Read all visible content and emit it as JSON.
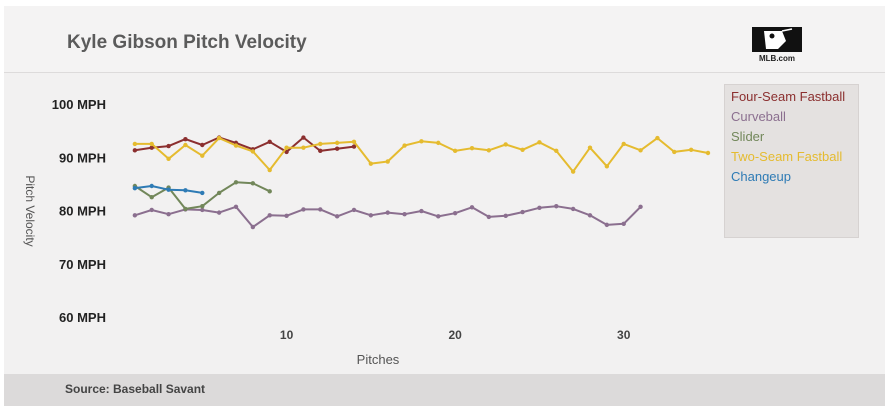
{
  "header": {
    "title": "Kyle Gibson Pitch Velocity",
    "logo_label": "MLB.com"
  },
  "footer": {
    "source": "Source: Baseball Savant"
  },
  "chart_data": {
    "type": "line",
    "title": "Kyle Gibson Pitch Velocity",
    "xlabel": "Pitches",
    "ylabel": "Pitch Velocity",
    "xlim": [
      0,
      35
    ],
    "ylim": [
      60,
      100
    ],
    "x_ticks": [
      10,
      20,
      30
    ],
    "y_ticks": [
      60,
      70,
      80,
      90,
      100
    ],
    "y_tick_labels": [
      "60 MPH",
      "70 MPH",
      "80 MPH",
      "90 MPH",
      "100 MPH"
    ],
    "grid": false,
    "legend_position": "right",
    "series": [
      {
        "name": "Four-Seam Fastball",
        "color": "#8b2f2f",
        "x": [
          1,
          2,
          3,
          4,
          5,
          6,
          7,
          8,
          9,
          10,
          11,
          12,
          13,
          14
        ],
        "y": [
          91.3,
          91.8,
          92.1,
          93.4,
          92.3,
          93.7,
          92.7,
          91.5,
          92.9,
          91.0,
          93.7,
          91.2,
          91.6,
          92.0
        ]
      },
      {
        "name": "Curveball",
        "color": "#8b6f8f",
        "x": [
          1,
          2,
          3,
          4,
          5,
          6,
          7,
          8,
          9,
          10,
          11,
          12,
          13,
          14,
          15,
          16,
          17,
          18,
          19,
          20,
          21,
          22,
          23,
          24,
          25,
          26,
          27,
          28,
          29,
          30,
          31
        ],
        "y": [
          79.1,
          80.1,
          79.3,
          80.2,
          80.1,
          79.6,
          80.7,
          76.9,
          79.1,
          79.0,
          80.2,
          80.2,
          78.9,
          80.1,
          79.1,
          79.6,
          79.3,
          79.9,
          78.9,
          79.5,
          80.6,
          78.8,
          79.0,
          79.7,
          80.5,
          80.8,
          80.3,
          79.1,
          77.3,
          77.5,
          80.7
        ]
      },
      {
        "name": "Slider",
        "color": "#72875a",
        "x": [
          1,
          2,
          3,
          4,
          5,
          6,
          7,
          8,
          9
        ],
        "y": [
          84.6,
          82.5,
          84.3,
          80.3,
          80.8,
          83.3,
          85.3,
          85.1,
          83.6
        ]
      },
      {
        "name": "Two-Seam Fastball",
        "color": "#e5bb2f",
        "x": [
          1,
          2,
          3,
          4,
          5,
          6,
          7,
          8,
          9,
          10,
          11,
          12,
          13,
          14,
          15,
          16,
          17,
          18,
          19,
          20,
          21,
          22,
          23,
          24,
          25,
          26,
          27,
          28,
          29,
          30,
          31,
          32,
          33,
          34,
          35
        ],
        "y": [
          92.5,
          92.5,
          89.7,
          92.3,
          90.3,
          93.6,
          92.2,
          91.1,
          87.6,
          91.8,
          91.8,
          92.5,
          92.7,
          92.9,
          88.8,
          89.2,
          92.2,
          93.0,
          92.7,
          91.2,
          91.7,
          91.3,
          92.4,
          91.4,
          92.8,
          91.2,
          87.3,
          91.8,
          88.3,
          92.5,
          91.3,
          93.6,
          91.0,
          91.4,
          90.8
        ]
      },
      {
        "name": "Changeup",
        "color": "#2e7bb5",
        "x": [
          1,
          2,
          3,
          4,
          5
        ],
        "y": [
          84.2,
          84.6,
          83.9,
          83.8,
          83.3
        ]
      }
    ]
  }
}
